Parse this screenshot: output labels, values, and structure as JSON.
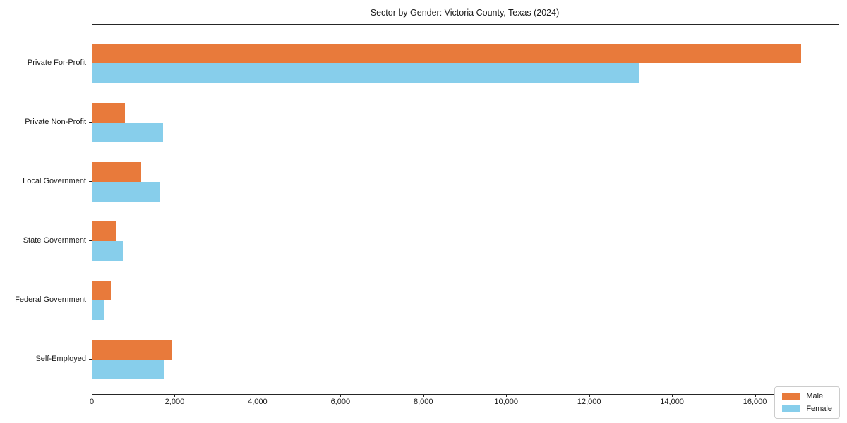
{
  "chart_data": {
    "type": "bar",
    "orientation": "horizontal",
    "title": "Sector by Gender: Victoria County, Texas (2024)",
    "categories": [
      "Private For-Profit",
      "Private Non-Profit",
      "Local Government",
      "State Government",
      "Federal Government",
      "Self-Employed"
    ],
    "series": [
      {
        "name": "Male",
        "color": "#E87A3B",
        "values": [
          17100,
          780,
          1170,
          580,
          450,
          1910
        ]
      },
      {
        "name": "Female",
        "color": "#87CEEB",
        "values": [
          13200,
          1700,
          1630,
          740,
          295,
          1740
        ]
      }
    ],
    "xlabel": "",
    "ylabel": "",
    "xlim": [
      0,
      18000
    ],
    "xticks": [
      0,
      2000,
      4000,
      6000,
      8000,
      10000,
      12000,
      14000,
      16000
    ],
    "xtick_labels": [
      "0",
      "2,000",
      "4,000",
      "6,000",
      "8,000",
      "10,000",
      "12,000",
      "14,000",
      "16,000"
    ],
    "legend_entries": [
      "Male",
      "Female"
    ],
    "legend_position": "lower right",
    "grid": false,
    "background_color": "#ffffff",
    "spine_color": "#262626"
  }
}
